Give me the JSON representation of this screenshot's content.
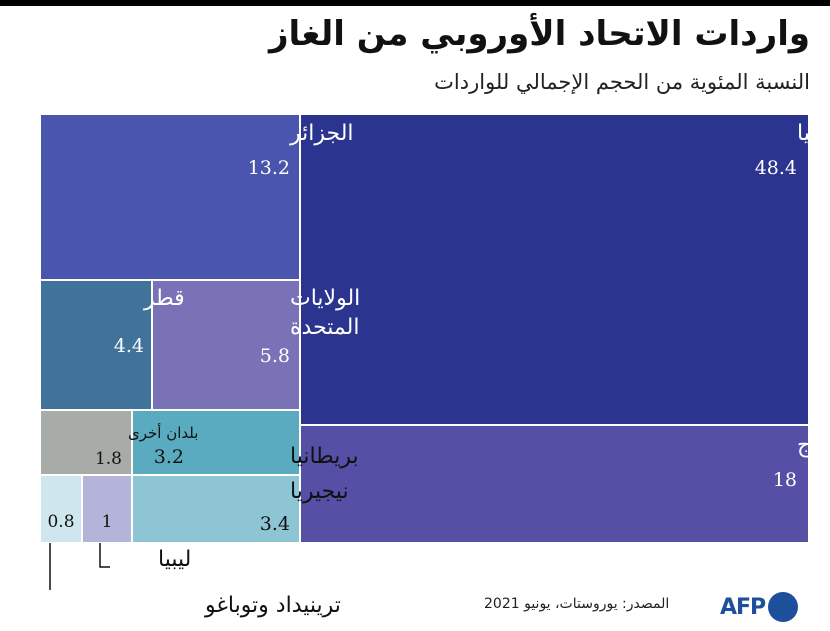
{
  "header": {
    "title": "واردات الاتحاد الأوروبي من الغاز",
    "subtitle": "النسبة المئوية من الحجم الإجمالي للواردات"
  },
  "chart_data": {
    "type": "treemap",
    "unit": "%",
    "items": [
      {
        "name": "روسيا",
        "value": 48.4,
        "value_label": "48.4",
        "color": "#2b3590"
      },
      {
        "name": "النروج",
        "value": 18,
        "value_label": "18",
        "color": "#554fa5"
      },
      {
        "name": "الجزائر",
        "value": 13.2,
        "value_label": "13.2",
        "color": "#4a55ad"
      },
      {
        "name": "الولايات المتحدة",
        "value": 5.8,
        "value_label": "5.8",
        "color": "#7a72b6"
      },
      {
        "name": "قطر",
        "value": 4.4,
        "value_label": "4.4",
        "color": "#41729a"
      },
      {
        "name": "نيجيريا",
        "value": 3.4,
        "value_label": "3.4",
        "color": "#8ec5d4"
      },
      {
        "name": "بريطانيا",
        "value": 3.2,
        "value_label": "3.2",
        "color": "#5aaac0"
      },
      {
        "name": "بلدان أخرى",
        "value": 1.8,
        "value_label": "1.8",
        "color": "#a7aca9"
      },
      {
        "name": "ليبيا",
        "value": 1,
        "value_label": "1",
        "color": "#b4b4da"
      },
      {
        "name": "ترينيداد وتوباغو",
        "value": 0.8,
        "value_label": "0.8",
        "color": "#cfe6ee"
      }
    ]
  },
  "footer": {
    "source": "المصدر: يوروستات، يونيو 2021",
    "logo_text": "AFP"
  }
}
